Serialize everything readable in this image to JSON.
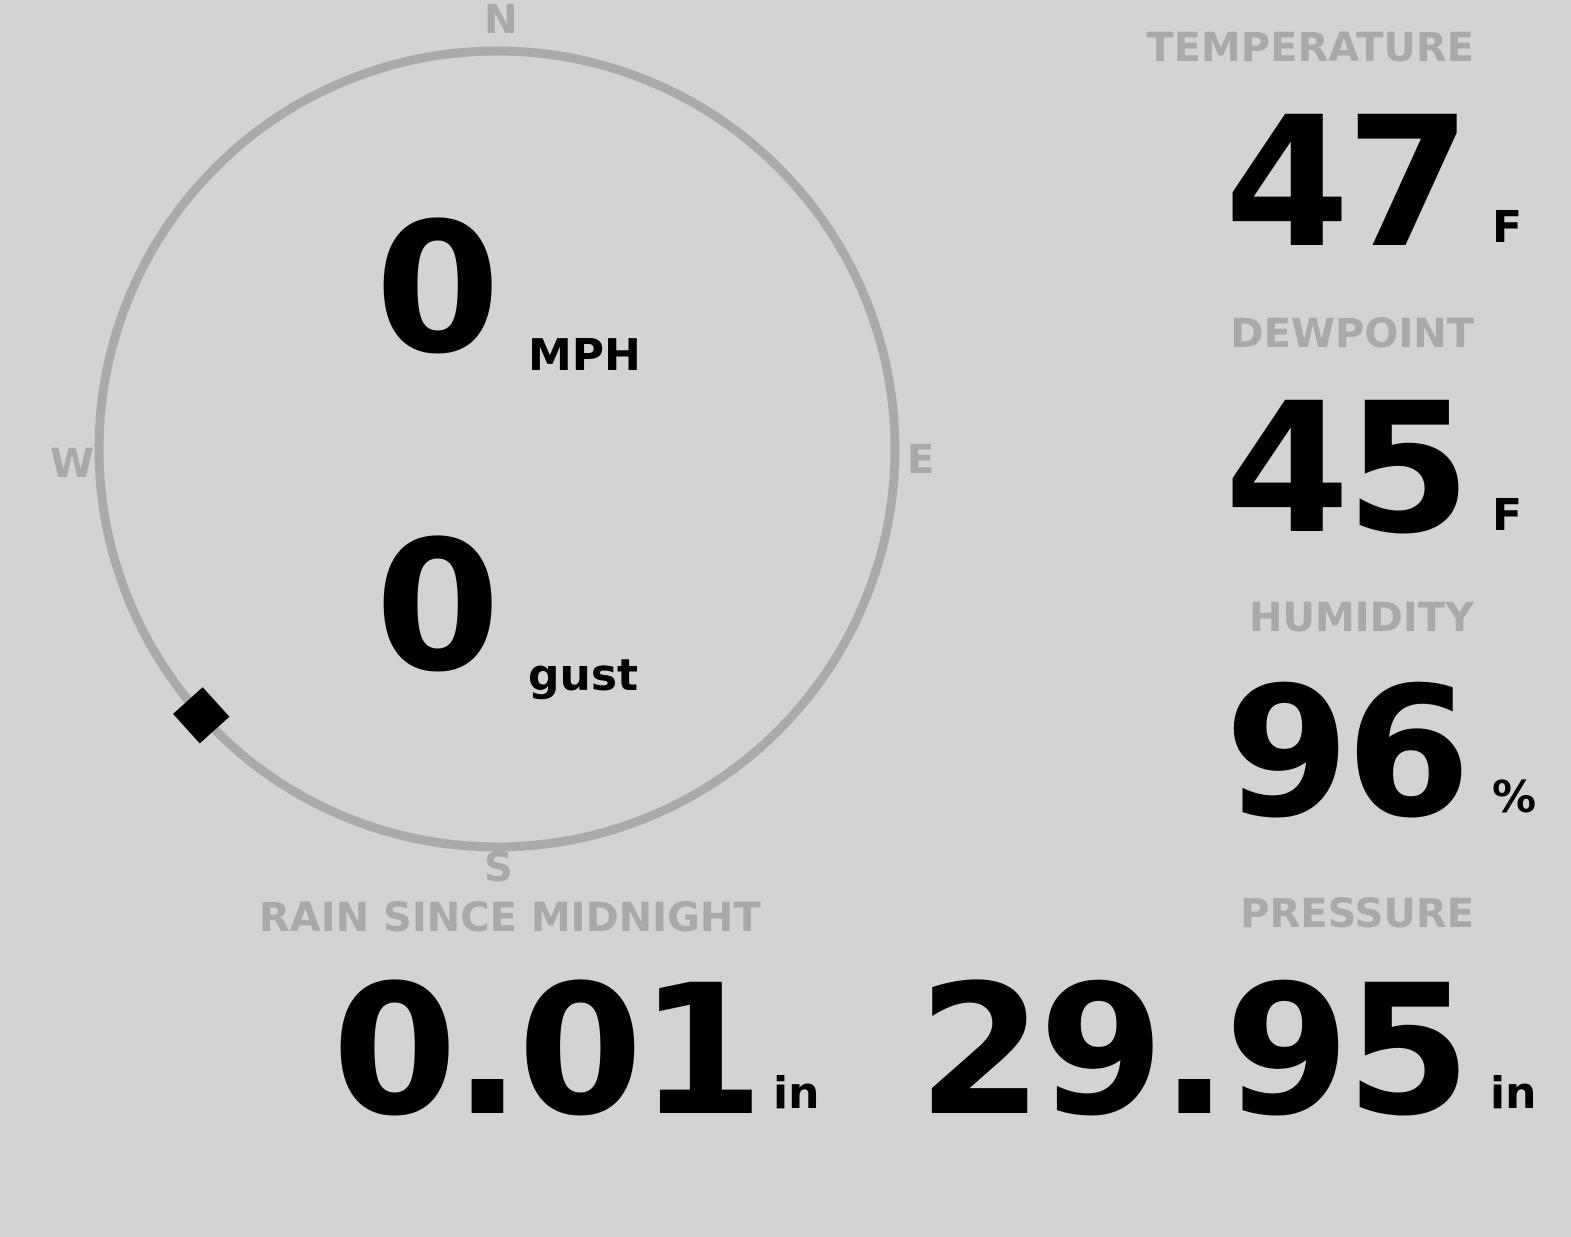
{
  "compass": {
    "north": "N",
    "south": "S",
    "east": "E",
    "west": "W",
    "wind_direction_deg": 228,
    "ring_color": "#aaaaaa",
    "indicator_icon": "diamond-marker"
  },
  "wind": {
    "speed": "0",
    "speed_unit": "MPH",
    "gust": "0",
    "gust_unit": "gust"
  },
  "temperature": {
    "label": "TEMPERATURE",
    "value": "47",
    "unit": "F"
  },
  "dewpoint": {
    "label": "DEWPOINT",
    "value": "45",
    "unit": "F"
  },
  "humidity": {
    "label": "HUMIDITY",
    "value": "96",
    "unit": "%"
  },
  "rain": {
    "label": "RAIN SINCE MIDNIGHT",
    "value": "0.01",
    "unit": "in"
  },
  "pressure": {
    "label": "PRESSURE",
    "value": "29.95",
    "unit": "in"
  },
  "colors": {
    "background": "#d3d3d3",
    "label": "#a9a9a9",
    "value": "#000000"
  }
}
